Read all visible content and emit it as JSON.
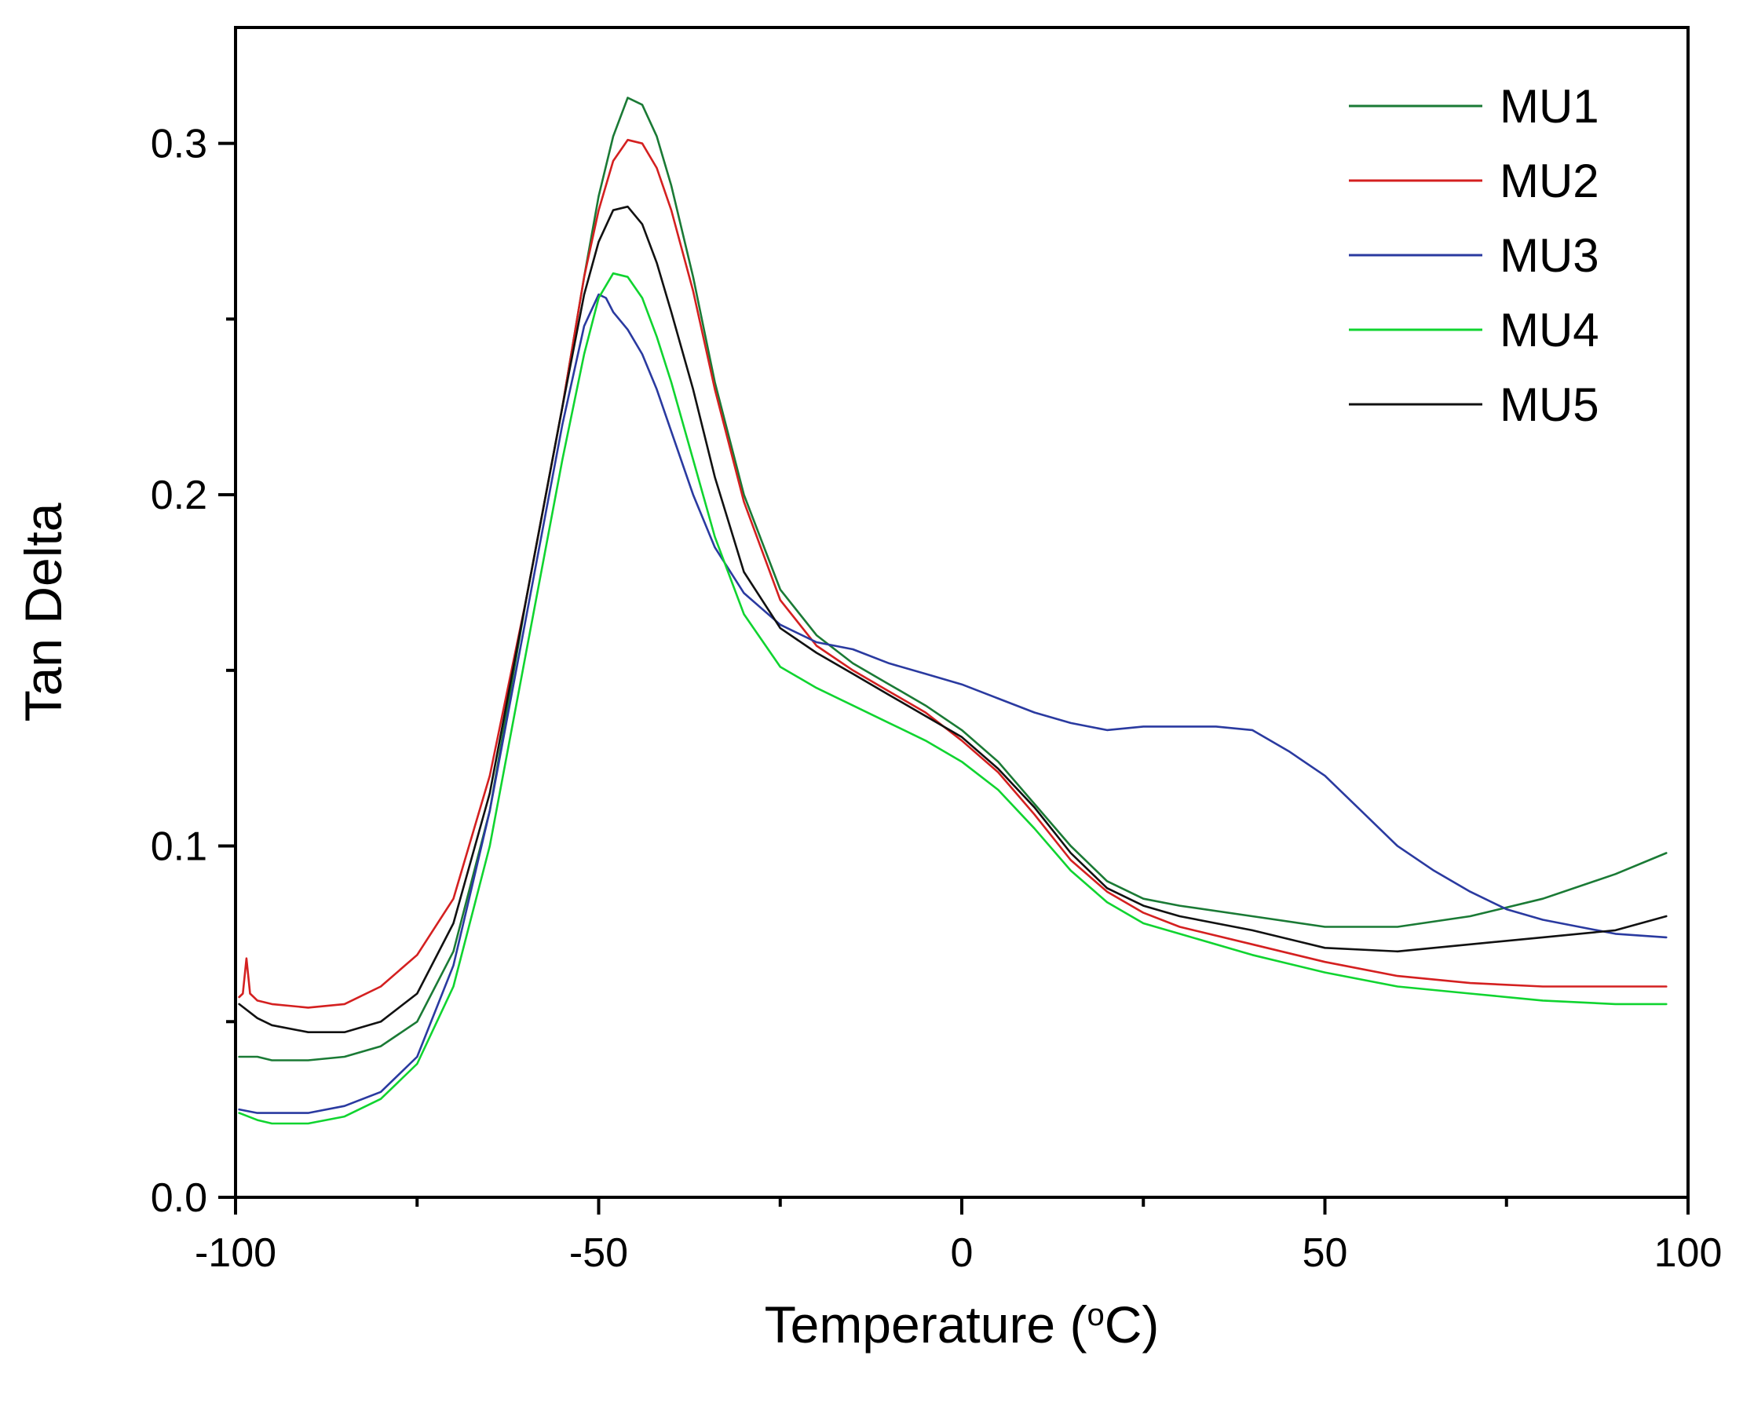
{
  "chart_data": {
    "type": "line",
    "title": "",
    "xlabel": "Temperature (",
    "xlabel_unit_sup": "o",
    "xlabel_unit_tail": "C)",
    "ylabel": "Tan Delta",
    "xlim": [
      -100,
      100
    ],
    "ylim": [
      0.0,
      0.333
    ],
    "xticks": [
      -100,
      -50,
      0,
      50,
      100
    ],
    "xtick_labels": [
      "-100",
      "-50",
      "0",
      "50",
      "100"
    ],
    "yticks": [
      0.0,
      0.1,
      0.2,
      0.3
    ],
    "ytick_labels": [
      "0.0",
      "0.1",
      "0.2",
      "0.3"
    ],
    "legend_position": "top-right",
    "grid": false,
    "series": [
      {
        "name": "MU1",
        "color": "#1a7a35",
        "x": [
          -99.5,
          -97,
          -95,
          -90,
          -85,
          -80,
          -75,
          -70,
          -65,
          -60,
          -55,
          -52,
          -50,
          -48,
          -46,
          -44,
          -42,
          -40,
          -37,
          -34,
          -30,
          -25,
          -20,
          -15,
          -10,
          -5,
          0,
          5,
          10,
          15,
          20,
          25,
          30,
          40,
          50,
          55,
          60,
          70,
          80,
          90,
          97
        ],
        "y": [
          0.04,
          0.04,
          0.039,
          0.039,
          0.04,
          0.043,
          0.05,
          0.07,
          0.11,
          0.17,
          0.225,
          0.262,
          0.285,
          0.302,
          0.313,
          0.311,
          0.302,
          0.288,
          0.262,
          0.232,
          0.2,
          0.173,
          0.16,
          0.152,
          0.146,
          0.14,
          0.133,
          0.124,
          0.112,
          0.1,
          0.09,
          0.085,
          0.083,
          0.08,
          0.077,
          0.077,
          0.077,
          0.08,
          0.085,
          0.092,
          0.098
        ]
      },
      {
        "name": "MU2",
        "color": "#d42020",
        "x": [
          -99.5,
          -99,
          -98.5,
          -98,
          -97,
          -95,
          -90,
          -85,
          -80,
          -75,
          -70,
          -65,
          -60,
          -55,
          -52,
          -50,
          -48,
          -46,
          -44,
          -42,
          -40,
          -37,
          -34,
          -30,
          -25,
          -20,
          -15,
          -10,
          -5,
          0,
          5,
          10,
          15,
          20,
          25,
          30,
          40,
          50,
          60,
          70,
          80,
          90,
          97
        ],
        "y": [
          0.057,
          0.058,
          0.068,
          0.058,
          0.056,
          0.055,
          0.054,
          0.055,
          0.06,
          0.069,
          0.085,
          0.12,
          0.17,
          0.225,
          0.262,
          0.281,
          0.295,
          0.301,
          0.3,
          0.293,
          0.281,
          0.258,
          0.23,
          0.198,
          0.17,
          0.157,
          0.15,
          0.144,
          0.138,
          0.13,
          0.121,
          0.109,
          0.096,
          0.087,
          0.081,
          0.077,
          0.072,
          0.067,
          0.063,
          0.061,
          0.06,
          0.06,
          0.06
        ]
      },
      {
        "name": "MU3",
        "color": "#2a3aa0",
        "x": [
          -99.5,
          -97,
          -95,
          -90,
          -85,
          -80,
          -75,
          -70,
          -65,
          -60,
          -55,
          -52,
          -50,
          -49,
          -48,
          -46,
          -44,
          -42,
          -40,
          -37,
          -34,
          -30,
          -25,
          -20,
          -15,
          -10,
          -5,
          0,
          5,
          10,
          15,
          20,
          25,
          30,
          35,
          40,
          45,
          50,
          55,
          60,
          65,
          70,
          75,
          80,
          85,
          90,
          97
        ],
        "y": [
          0.025,
          0.024,
          0.024,
          0.024,
          0.026,
          0.03,
          0.04,
          0.066,
          0.11,
          0.165,
          0.22,
          0.248,
          0.257,
          0.256,
          0.252,
          0.247,
          0.24,
          0.23,
          0.218,
          0.2,
          0.185,
          0.172,
          0.163,
          0.158,
          0.156,
          0.152,
          0.149,
          0.146,
          0.142,
          0.138,
          0.135,
          0.133,
          0.134,
          0.134,
          0.134,
          0.133,
          0.127,
          0.12,
          0.11,
          0.1,
          0.093,
          0.087,
          0.082,
          0.079,
          0.077,
          0.075,
          0.074
        ]
      },
      {
        "name": "MU4",
        "color": "#10d430",
        "x": [
          -99.5,
          -97,
          -95,
          -90,
          -85,
          -80,
          -75,
          -70,
          -65,
          -60,
          -55,
          -52,
          -50,
          -48,
          -46,
          -44,
          -42,
          -40,
          -37,
          -34,
          -30,
          -25,
          -20,
          -15,
          -10,
          -5,
          0,
          5,
          10,
          15,
          20,
          25,
          30,
          40,
          50,
          60,
          70,
          80,
          90,
          97
        ],
        "y": [
          0.024,
          0.022,
          0.021,
          0.021,
          0.023,
          0.028,
          0.038,
          0.06,
          0.1,
          0.155,
          0.21,
          0.24,
          0.256,
          0.263,
          0.262,
          0.256,
          0.245,
          0.232,
          0.21,
          0.188,
          0.166,
          0.151,
          0.145,
          0.14,
          0.135,
          0.13,
          0.124,
          0.116,
          0.105,
          0.093,
          0.084,
          0.078,
          0.075,
          0.069,
          0.064,
          0.06,
          0.058,
          0.056,
          0.055,
          0.055
        ]
      },
      {
        "name": "MU5",
        "color": "#111111",
        "x": [
          -99.5,
          -97,
          -95,
          -90,
          -85,
          -80,
          -75,
          -70,
          -65,
          -60,
          -55,
          -52,
          -50,
          -48,
          -46,
          -44,
          -42,
          -40,
          -37,
          -34,
          -30,
          -25,
          -20,
          -15,
          -10,
          -5,
          0,
          5,
          10,
          15,
          20,
          25,
          30,
          40,
          50,
          60,
          70,
          80,
          90,
          97
        ],
        "y": [
          0.055,
          0.051,
          0.049,
          0.047,
          0.047,
          0.05,
          0.058,
          0.078,
          0.115,
          0.17,
          0.225,
          0.257,
          0.272,
          0.281,
          0.282,
          0.277,
          0.266,
          0.252,
          0.23,
          0.205,
          0.178,
          0.162,
          0.155,
          0.149,
          0.143,
          0.137,
          0.131,
          0.122,
          0.111,
          0.098,
          0.088,
          0.083,
          0.08,
          0.076,
          0.071,
          0.07,
          0.072,
          0.074,
          0.076,
          0.08
        ]
      }
    ]
  }
}
